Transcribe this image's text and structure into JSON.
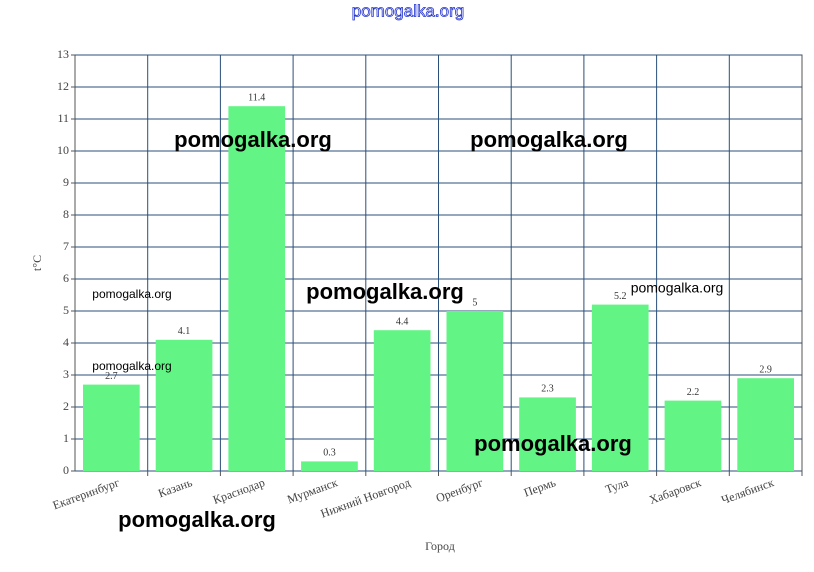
{
  "chart_data": {
    "type": "bar",
    "title": "pomogalka.org",
    "y_label": "t°C",
    "x_label": "Город",
    "categories": [
      "Екатеринбург",
      "Казань",
      "Краснодар",
      "Мурманск",
      "Нижний Новгород",
      "Оренбург",
      "Пермь",
      "Тула",
      "Хабаровск",
      "Челябинск"
    ],
    "values": [
      2.7,
      4.1,
      11.4,
      0.3,
      4.4,
      5,
      2.3,
      5.2,
      2.2,
      2.9
    ],
    "color": "#62f585",
    "ylim": [
      0,
      13
    ],
    "yticks": [
      0,
      1,
      2,
      3,
      4,
      5,
      6,
      7,
      8,
      9,
      10,
      11,
      12,
      13
    ],
    "grid": true,
    "annotations": [
      "pomogalka.org",
      "pomogalka.org",
      "pomogalka.org",
      "pomogalka.org",
      "pomogalka.org",
      "pomogalka.org",
      "pomogalka.org",
      "pomogalka.org"
    ]
  }
}
